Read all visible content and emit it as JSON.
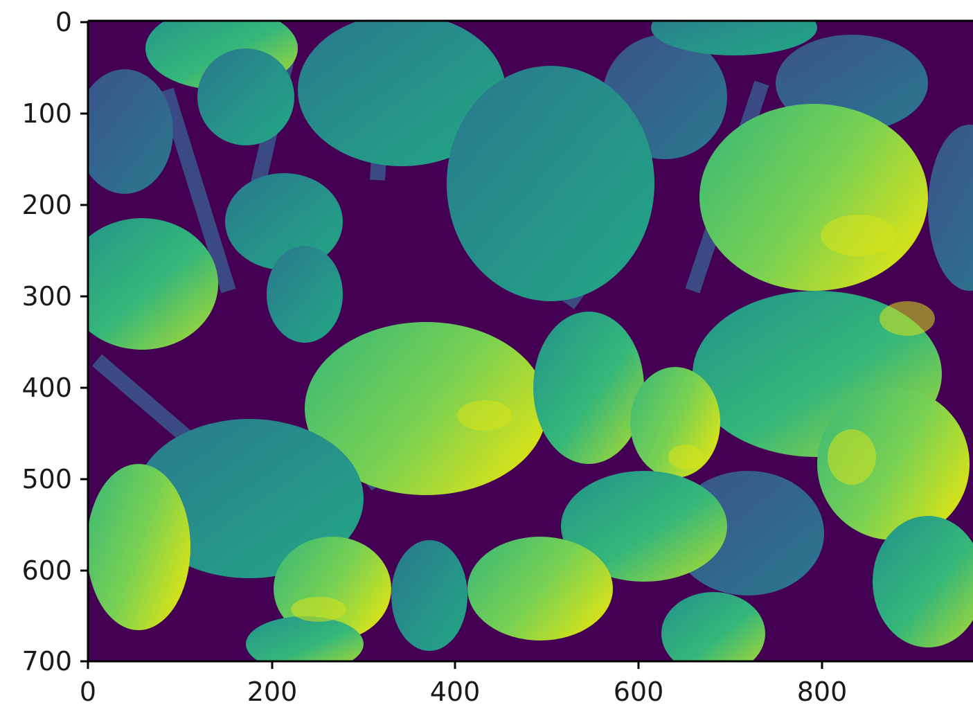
{
  "image": {
    "description": "Plant leaves, single-channel image rendered with viridis colormap",
    "colormap": "viridis",
    "colors": {
      "background": "#440154",
      "bg_mid": "#3b528b",
      "stem": "#31688e",
      "leaf_teal": "#21918c",
      "leaf_green": "#35b779",
      "leaf_light": "#6ece58",
      "leaf_yellow": "#b5de2b",
      "leaf_bright": "#fde725"
    }
  },
  "axes": {
    "x_ticks": [
      "0",
      "200",
      "400",
      "600",
      "800"
    ],
    "y_ticks": [
      "0",
      "100",
      "200",
      "300",
      "400",
      "500",
      "600",
      "700"
    ]
  }
}
